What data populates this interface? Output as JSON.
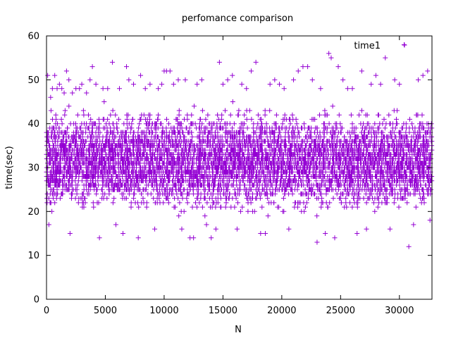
{
  "chart_data": {
    "type": "scatter",
    "title": "perfomance comparison",
    "xlabel": "N",
    "ylabel": "time(sec)",
    "xlim": [
      0,
      32768
    ],
    "ylim": [
      0,
      60
    ],
    "xticks": [
      0,
      5000,
      10000,
      15000,
      20000,
      25000,
      30000
    ],
    "yticks": [
      0,
      10,
      20,
      30,
      40,
      50,
      60
    ],
    "grid": false,
    "legend_position": "top-right",
    "series": [
      {
        "name": "time1",
        "color": "#9400d3",
        "marker": "plus",
        "y_range_dense": [
          18,
          45
        ],
        "points": [
          [
            100,
            51
          ],
          [
            200,
            17
          ],
          [
            350,
            46
          ],
          [
            500,
            48
          ],
          [
            700,
            51
          ],
          [
            900,
            48
          ],
          [
            1100,
            49
          ],
          [
            1300,
            48
          ],
          [
            1500,
            47
          ],
          [
            1700,
            52
          ],
          [
            1900,
            50
          ],
          [
            2000,
            15
          ],
          [
            2200,
            47
          ],
          [
            2500,
            48
          ],
          [
            2800,
            48
          ],
          [
            3000,
            49
          ],
          [
            3400,
            47
          ],
          [
            3700,
            50
          ],
          [
            3900,
            53
          ],
          [
            4200,
            49
          ],
          [
            4500,
            14
          ],
          [
            4800,
            48
          ],
          [
            5200,
            48
          ],
          [
            5600,
            54
          ],
          [
            5900,
            17
          ],
          [
            6200,
            48
          ],
          [
            6500,
            15
          ],
          [
            6800,
            53
          ],
          [
            7000,
            50
          ],
          [
            7400,
            49
          ],
          [
            7800,
            14
          ],
          [
            8000,
            51
          ],
          [
            8400,
            48
          ],
          [
            8800,
            49
          ],
          [
            9200,
            16
          ],
          [
            9500,
            48
          ],
          [
            9800,
            49
          ],
          [
            10000,
            52
          ],
          [
            10200,
            52
          ],
          [
            10500,
            52
          ],
          [
            10800,
            49
          ],
          [
            11200,
            50
          ],
          [
            11500,
            16
          ],
          [
            11800,
            50
          ],
          [
            12200,
            14
          ],
          [
            12500,
            14
          ],
          [
            12800,
            49
          ],
          [
            13200,
            50
          ],
          [
            13600,
            17
          ],
          [
            14000,
            14
          ],
          [
            14400,
            16
          ],
          [
            14700,
            54
          ],
          [
            15000,
            49
          ],
          [
            15400,
            50
          ],
          [
            15800,
            51
          ],
          [
            16200,
            16
          ],
          [
            16600,
            49
          ],
          [
            17000,
            48
          ],
          [
            17400,
            52
          ],
          [
            17800,
            54
          ],
          [
            18200,
            15
          ],
          [
            18600,
            15
          ],
          [
            19000,
            49
          ],
          [
            19400,
            50
          ],
          [
            19800,
            49
          ],
          [
            20200,
            48
          ],
          [
            20600,
            16
          ],
          [
            21000,
            50
          ],
          [
            21400,
            52
          ],
          [
            21800,
            53
          ],
          [
            22200,
            53
          ],
          [
            22600,
            50
          ],
          [
            23000,
            13
          ],
          [
            23300,
            48
          ],
          [
            23700,
            15
          ],
          [
            24000,
            56
          ],
          [
            24200,
            55
          ],
          [
            24500,
            14
          ],
          [
            24800,
            53
          ],
          [
            25200,
            50
          ],
          [
            25600,
            48
          ],
          [
            26000,
            48
          ],
          [
            26400,
            15
          ],
          [
            26800,
            52
          ],
          [
            27200,
            16
          ],
          [
            27600,
            49
          ],
          [
            28000,
            51
          ],
          [
            28400,
            49
          ],
          [
            28800,
            55
          ],
          [
            29200,
            16
          ],
          [
            29600,
            50
          ],
          [
            30000,
            49
          ],
          [
            30400,
            58
          ],
          [
            30800,
            12
          ],
          [
            31200,
            17
          ],
          [
            31600,
            50
          ],
          [
            32000,
            51
          ],
          [
            32400,
            52
          ],
          [
            32600,
            18
          ]
        ]
      }
    ]
  }
}
